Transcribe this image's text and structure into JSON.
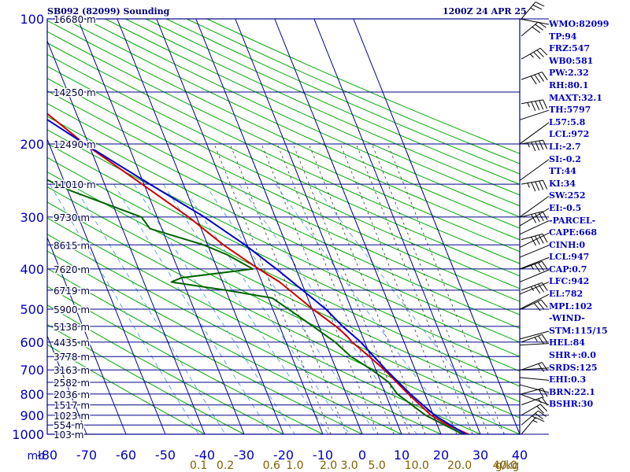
{
  "header": {
    "station": "SB092 (82099) Sounding",
    "time": "1200Z 24 APR 25"
  },
  "chart_data": {
    "type": "skew-t log-p sounding",
    "y_unit": "mb",
    "x_unit": "°C",
    "pressure_levels": [
      100,
      200,
      300,
      400,
      500,
      600,
      700,
      800,
      900,
      1000
    ],
    "pressure_tick_labels": [
      "100",
      "200",
      "300",
      "400",
      "500",
      "600",
      "700",
      "800",
      "900",
      "1000"
    ],
    "height_labels": [
      {
        "p": 100,
        "label": "16680 m"
      },
      {
        "p": 150,
        "label": "14250 m"
      },
      {
        "p": 200,
        "label": "12490 m"
      },
      {
        "p": 250,
        "label": "11010 m"
      },
      {
        "p": 300,
        "label": "9730 m"
      },
      {
        "p": 350,
        "label": "8615 m"
      },
      {
        "p": 400,
        "label": "7620 m"
      },
      {
        "p": 450,
        "label": "6719 m"
      },
      {
        "p": 500,
        "label": "5900 m"
      },
      {
        "p": 550,
        "label": "5138 m"
      },
      {
        "p": 600,
        "label": "4435 m"
      },
      {
        "p": 650,
        "label": "3778 m"
      },
      {
        "p": 700,
        "label": "3163 m"
      },
      {
        "p": 750,
        "label": "2582 m"
      },
      {
        "p": 800,
        "label": "2036 m"
      },
      {
        "p": 850,
        "label": "1517 m"
      },
      {
        "p": 900,
        "label": "1023 m"
      },
      {
        "p": 950,
        "label": "554 m"
      },
      {
        "p": 1000,
        "label": "103 m"
      }
    ],
    "temperature_ticks": [
      -80,
      -70,
      -60,
      -50,
      -40,
      -30,
      -20,
      -10,
      0,
      10,
      20,
      30,
      40
    ],
    "temperature_tick_labels": [
      "-80",
      "-70",
      "-60",
      "-50",
      "-40",
      "-30",
      "-20",
      "-10",
      "0",
      "10",
      "20",
      "30",
      "40"
    ],
    "axis_corner_label": "mb",
    "mixing_ratio_labels": [
      "0.1",
      "0.2",
      "0.6",
      "1.0",
      "2.0",
      "3.0",
      "5.0",
      "10.0",
      "20.0",
      "40.0"
    ],
    "mixing_ratio_unit": "g/kg",
    "series": [
      {
        "name": "temperature",
        "color": "#cc0000",
        "points": [
          [
            100,
            -80.0
          ],
          [
            120,
            -63.0
          ],
          [
            150,
            -52.0
          ],
          [
            200,
            -41.0
          ],
          [
            250,
            -30.5
          ],
          [
            300,
            -22.0
          ],
          [
            350,
            -16.0
          ],
          [
            400,
            -9.5
          ],
          [
            430,
            -5.5
          ],
          [
            450,
            -3.8
          ],
          [
            500,
            0.2
          ],
          [
            550,
            4.3
          ],
          [
            580,
            6.1
          ],
          [
            600,
            6.8
          ],
          [
            650,
            9.7
          ],
          [
            700,
            12.2
          ],
          [
            800,
            15.8
          ],
          [
            900,
            19.4
          ],
          [
            950,
            22.6
          ],
          [
            1000,
            27.0
          ]
        ]
      },
      {
        "name": "dewpoint",
        "color": "#006400",
        "points": [
          [
            100,
            -82.0
          ],
          [
            130,
            -68.0
          ],
          [
            140,
            -66.0
          ],
          [
            160,
            -63.0
          ],
          [
            170,
            -64.0
          ],
          [
            200,
            -60.0
          ],
          [
            230,
            -59.0
          ],
          [
            260,
            -49.0
          ],
          [
            300,
            -34.0
          ],
          [
            320,
            -33.0
          ],
          [
            350,
            -21.0
          ],
          [
            370,
            -16.0
          ],
          [
            400,
            -11.0
          ],
          [
            420,
            -30.0
          ],
          [
            430,
            -33.0
          ],
          [
            450,
            -20.0
          ],
          [
            470,
            -9.0
          ],
          [
            500,
            -6.0
          ],
          [
            550,
            -1.5
          ],
          [
            600,
            2.5
          ],
          [
            650,
            5.0
          ],
          [
            700,
            9.0
          ],
          [
            750,
            12.0
          ],
          [
            800,
            13.0
          ],
          [
            900,
            18.0
          ],
          [
            1000,
            25.5
          ]
        ]
      },
      {
        "name": "parcel",
        "color": "#0000cc",
        "points": [
          [
            100,
            -84.0
          ],
          [
            150,
            -56.0
          ],
          [
            200,
            -41.0
          ],
          [
            250,
            -28.5
          ],
          [
            300,
            -18.0
          ],
          [
            350,
            -10.5
          ],
          [
            400,
            -5.0
          ],
          [
            450,
            -0.5
          ],
          [
            500,
            3.5
          ],
          [
            550,
            6.0
          ],
          [
            600,
            9.0
          ],
          [
            700,
            12.6
          ],
          [
            800,
            16.3
          ],
          [
            900,
            20.3
          ],
          [
            1000,
            26.2
          ]
        ]
      }
    ],
    "wind_barbs": [
      {
        "p": 100,
        "dir": 220,
        "speed": 25
      },
      {
        "p": 110,
        "dir": 230,
        "speed": 30
      },
      {
        "p": 125,
        "dir": 240,
        "speed": 35
      },
      {
        "p": 140,
        "dir": 250,
        "speed": 40
      },
      {
        "p": 160,
        "dir": 260,
        "speed": 45
      },
      {
        "p": 200,
        "dir": 260,
        "speed": 45
      },
      {
        "p": 250,
        "dir": 260,
        "speed": 45
      },
      {
        "p": 300,
        "dir": 255,
        "speed": 40
      },
      {
        "p": 340,
        "dir": 255,
        "speed": 40
      },
      {
        "p": 400,
        "dir": 250,
        "speed": 35
      },
      {
        "p": 450,
        "dir": 250,
        "speed": 35
      },
      {
        "p": 500,
        "dir": 245,
        "speed": 30
      },
      {
        "p": 600,
        "dir": 250,
        "speed": 25
      },
      {
        "p": 700,
        "dir": 250,
        "speed": 20
      },
      {
        "p": 800,
        "dir": 255,
        "speed": 20
      },
      {
        "p": 850,
        "dir": 250,
        "speed": 15
      },
      {
        "p": 900,
        "dir": 240,
        "speed": 20
      },
      {
        "p": 950,
        "dir": 230,
        "speed": 25
      },
      {
        "p": 1000,
        "dir": 220,
        "speed": 15
      }
    ]
  },
  "stats": [
    {
      "label": "WMO:82099",
      "p": 100
    },
    {
      "label": "TP:94"
    },
    {
      "label": "FRZ:547"
    },
    {
      "label": "WB0:581"
    },
    {
      "label": "PW:2.32"
    },
    {
      "label": "RH:80.1"
    },
    {
      "label": "MAXT:32.1"
    },
    {
      "label": "TH:5797",
      "p": 175
    },
    {
      "label": "L57:5.8",
      "p": 200
    },
    {
      "label": "LCL:972"
    },
    {
      "label": "LI:-2.7"
    },
    {
      "label": "SI:-0.2",
      "p": 245
    },
    {
      "label": "TT:44"
    },
    {
      "label": "KI:34"
    },
    {
      "label": "SW:252",
      "p": 300
    },
    {
      "label": "EI:-0.5",
      "p": 315
    },
    {
      "label": "-PARCEL-",
      "p": 330
    },
    {
      "label": "CAPE:668",
      "p": 355
    },
    {
      "label": "CINH:0",
      "p": 375
    },
    {
      "label": "LCL:947",
      "p": 400
    },
    {
      "label": "CAP:0.7",
      "p": 430
    },
    {
      "label": "LFC:942",
      "p": 460
    },
    {
      "label": "EL:782",
      "p": 500
    },
    {
      "label": "MPL:102"
    },
    {
      "label": "-WIND-"
    },
    {
      "label": "STM:115/15",
      "p": 590
    },
    {
      "label": "HEL:84",
      "p": 610
    },
    {
      "label": "SHR+:0.0"
    },
    {
      "label": "SRDS:125",
      "p": 700
    },
    {
      "label": "EHI:0.3",
      "p": 730
    },
    {
      "label": "BRN:22.1",
      "p": 760
    },
    {
      "label": "BSHR:30",
      "p": 800
    }
  ],
  "colors": {
    "grid": "#00008b",
    "dry_adiabat": "#00aa00",
    "moist_adiabat": "#333333",
    "mixing_ratio": "#5599dd",
    "axis_labels": "#0000c0",
    "mixing_labels": "#806000"
  }
}
